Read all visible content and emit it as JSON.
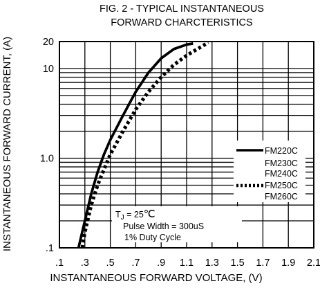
{
  "chart_data": {
    "type": "line",
    "title_lines": [
      "FIG. 2 - TYPICAL INSTANTANEOUS",
      "FORWARD CHARCTERISTICS"
    ],
    "xlabel": "INSTANTANEOUS FORWARD VOLTAGE, (V)",
    "ylabel": "INSTANTANEOUS FORWARD CURRENT, (A)",
    "xlim": [
      0.1,
      2.1
    ],
    "ylim": [
      0.1,
      20
    ],
    "y_scale": "log",
    "x_ticks": [
      ".1",
      ".3",
      ".5",
      ".7",
      ".9",
      "1.1",
      "1.3",
      "1.5",
      "1.7",
      "1.9",
      "2.1"
    ],
    "y_ticks": [
      ".1",
      "1.0",
      "10",
      "20"
    ],
    "grid": true,
    "legend_position": "right",
    "series": [
      {
        "name": "FM220C",
        "style": "solid",
        "x": [
          0.25,
          0.3,
          0.35,
          0.4,
          0.45,
          0.5,
          0.6,
          0.7,
          0.8,
          0.9,
          1.0,
          1.1,
          1.15
        ],
        "y": [
          0.1,
          0.2,
          0.4,
          0.7,
          1.1,
          1.6,
          3.0,
          5.5,
          9.0,
          13.0,
          16.5,
          18.5,
          19.0
        ]
      },
      {
        "name": "FM230C",
        "style": "solid",
        "x": [
          0.25,
          0.3,
          0.35,
          0.4,
          0.45,
          0.5,
          0.6,
          0.7,
          0.8,
          0.9,
          1.0,
          1.1,
          1.15
        ],
        "y": [
          0.1,
          0.2,
          0.4,
          0.7,
          1.1,
          1.6,
          3.0,
          5.5,
          9.0,
          13.0,
          16.5,
          18.5,
          19.0
        ]
      },
      {
        "name": "FM240C",
        "style": "solid",
        "x": [
          0.25,
          0.3,
          0.35,
          0.4,
          0.45,
          0.5,
          0.6,
          0.7,
          0.8,
          0.9,
          1.0,
          1.1,
          1.15
        ],
        "y": [
          0.1,
          0.2,
          0.4,
          0.7,
          1.1,
          1.6,
          3.0,
          5.5,
          9.0,
          13.0,
          16.5,
          18.5,
          19.0
        ]
      },
      {
        "name": "FM250C",
        "style": "dotted",
        "x": [
          0.28,
          0.3,
          0.35,
          0.4,
          0.45,
          0.5,
          0.6,
          0.7,
          0.8,
          0.9,
          1.0,
          1.1,
          1.2,
          1.27
        ],
        "y": [
          0.1,
          0.15,
          0.3,
          0.5,
          0.75,
          1.1,
          2.0,
          3.5,
          5.5,
          8.0,
          11.0,
          14.0,
          17.0,
          19.5
        ]
      },
      {
        "name": "FM260C",
        "style": "dotted",
        "x": [
          0.28,
          0.3,
          0.35,
          0.4,
          0.45,
          0.5,
          0.6,
          0.7,
          0.8,
          0.9,
          1.0,
          1.1,
          1.2,
          1.27
        ],
        "y": [
          0.1,
          0.15,
          0.3,
          0.5,
          0.75,
          1.1,
          2.0,
          3.5,
          5.5,
          8.0,
          11.0,
          14.0,
          17.0,
          19.5
        ]
      }
    ],
    "annotations": {
      "tj_prefix": "T",
      "tj_sub": "J",
      "tj_value": " = 25",
      "tj_unit": "℃",
      "pulse": "Pulse Width = 300uS",
      "duty": "1% Duty Cycle"
    }
  }
}
